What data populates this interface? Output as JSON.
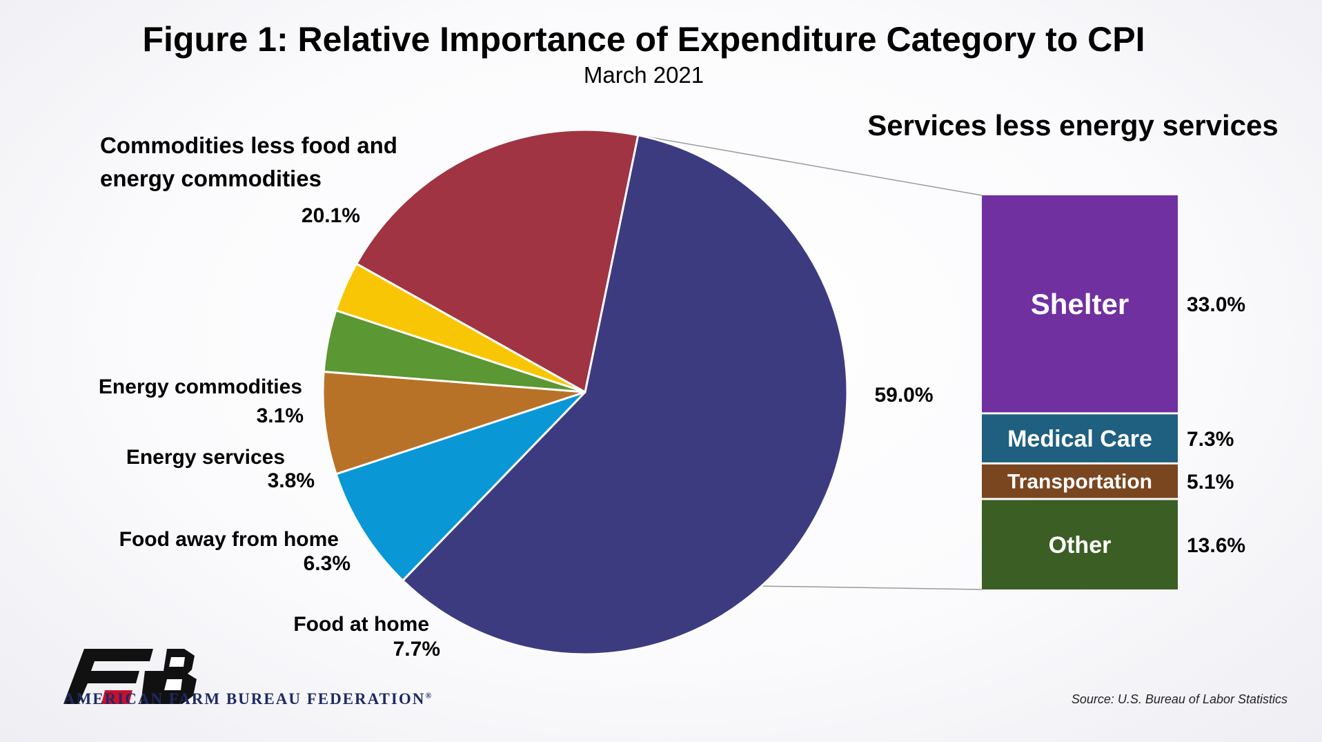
{
  "chart_data": {
    "type": "pie",
    "title": "Figure 1: Relative Importance of Expenditure Category to CPI",
    "subtitle": "March 2021",
    "slices": [
      {
        "label": "",
        "value_label": "59.0%",
        "value": 59.0,
        "color": "#3d3b80"
      },
      {
        "label": "Food at home",
        "value_label": "7.7%",
        "value": 7.7,
        "color": "#0a97d6"
      },
      {
        "label": "Food away from home",
        "value_label": "6.3%",
        "value": 6.3,
        "color": "#b87228"
      },
      {
        "label": "Energy services",
        "value_label": "3.8%",
        "value": 3.8,
        "color": "#5b9733"
      },
      {
        "label": "Energy commodities",
        "value_label": "3.1%",
        "value": 3.1,
        "color": "#f9c606"
      },
      {
        "label": "Commodities less food and energy commodities",
        "value_label": "20.1%",
        "value": 20.1,
        "color": "#a03443"
      }
    ],
    "breakout": {
      "title": "Services less energy services",
      "segments": [
        {
          "label": "Shelter",
          "value_label": "33.0%",
          "value": 33.0,
          "color": "#7030a0"
        },
        {
          "label": "Medical Care",
          "value_label": "7.3%",
          "value": 7.3,
          "color": "#1f5f7f"
        },
        {
          "label": "Transportation",
          "value_label": "5.1%",
          "value": 5.1,
          "color": "#7a4620"
        },
        {
          "label": "Other",
          "value_label": "13.6%",
          "value": 13.6,
          "color": "#3b5e24"
        }
      ]
    }
  },
  "footer": {
    "organization": "AMERICAN FARM BUREAU FEDERATION",
    "registered": "®",
    "source": "Source: U.S. Bureau of Labor Statistics"
  },
  "colors": {
    "logo": "#111111",
    "logo_text": "#1f2a63"
  }
}
